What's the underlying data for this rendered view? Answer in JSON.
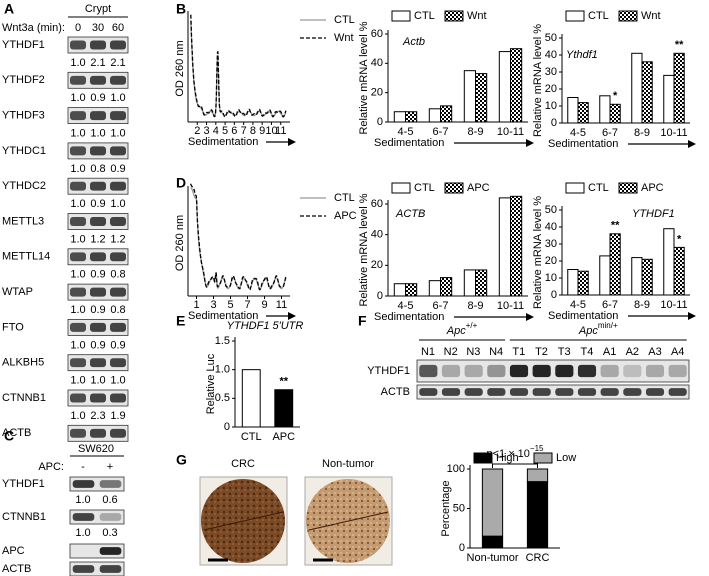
{
  "panel_labels": [
    "A",
    "B",
    "C",
    "D",
    "E",
    "F",
    "G"
  ],
  "panel_a": {
    "group": "Crypt",
    "treatment": "Wnt3a (min):",
    "lanes": [
      "0",
      "30",
      "60"
    ],
    "rows": [
      {
        "protein": "YTHDF1",
        "quant": [
          "1.0",
          "2.1",
          "2.1"
        ]
      },
      {
        "protein": "YTHDF2",
        "quant": [
          "1.0",
          "0.9",
          "1.0"
        ]
      },
      {
        "protein": "YTHDF3",
        "quant": [
          "1.0",
          "1.0",
          "1.0"
        ]
      },
      {
        "protein": "YTHDC1",
        "quant": [
          "1.0",
          "0.8",
          "0.9"
        ]
      },
      {
        "protein": "YTHDC2",
        "quant": [
          "1.0",
          "0.9",
          "1.0"
        ]
      },
      {
        "protein": "METTL3",
        "quant": [
          "1.0",
          "1.2",
          "1.2"
        ]
      },
      {
        "protein": "METTL14",
        "quant": [
          "1.0",
          "0.9",
          "0.8"
        ]
      },
      {
        "protein": "WTAP",
        "quant": [
          "1.0",
          "0.9",
          "0.8"
        ]
      },
      {
        "protein": "FTO",
        "quant": [
          "1.0",
          "0.9",
          "0.9"
        ]
      },
      {
        "protein": "ALKBH5",
        "quant": [
          "1.0",
          "1.0",
          "1.0"
        ]
      },
      {
        "protein": "CTNNB1",
        "quant": [
          "1.0",
          "2.3",
          "1.9"
        ]
      },
      {
        "protein": "ACTB"
      }
    ]
  },
  "panel_c": {
    "cell_line": "SW620",
    "treatment": "APC:",
    "lanes": [
      "-",
      "+"
    ],
    "rows": [
      {
        "protein": "YTHDF1",
        "quant": [
          "1.0",
          "0.6"
        ]
      },
      {
        "protein": "CTNNB1",
        "quant": [
          "1.0",
          "0.3"
        ]
      },
      {
        "protein": "APC"
      },
      {
        "protein": "ACTB"
      }
    ]
  },
  "panel_f": {
    "groups": [
      {
        "text": "Apc",
        "sup": "+/+",
        "lanes": [
          "N1",
          "N2",
          "N3",
          "N4"
        ]
      },
      {
        "text": "Apc",
        "sup": "min/+",
        "lanes": [
          "T1",
          "T2",
          "T3",
          "T4",
          "A1",
          "A2",
          "A3",
          "A4"
        ]
      }
    ],
    "rows": [
      "YTHDF1",
      "ACTB"
    ]
  },
  "panel_g": {
    "images": [
      "CRC",
      "Non-tumor"
    ]
  },
  "chart_data": [
    {
      "type": "line",
      "ylabel": "OD 260 nm",
      "xlabel": "Sedimentation",
      "xlim": [
        1,
        12
      ],
      "xticks": [
        2,
        3,
        4,
        5,
        6,
        7,
        8,
        9,
        10,
        11
      ],
      "series": [
        {
          "name": "CTL",
          "color": "#999999"
        },
        {
          "name": "Wnt",
          "color": "#000000",
          "dash": true
        }
      ]
    },
    {
      "type": "bar",
      "title": "Actb",
      "ylabel": "Relative mRNA level %",
      "xlabel": "Sedimentation",
      "categories": [
        "4-5",
        "6-7",
        "8-9",
        "10-11"
      ],
      "ylim": [
        0,
        60
      ],
      "yticks": [
        0,
        20,
        40,
        60
      ],
      "series": [
        {
          "name": "CTL",
          "color": "#ffffff",
          "values": [
            7,
            9,
            35,
            48
          ]
        },
        {
          "name": "Wnt",
          "color": "#000000",
          "pattern": "checkered",
          "values": [
            7,
            11,
            33,
            50
          ]
        }
      ]
    },
    {
      "type": "bar",
      "title": "Ythdf1",
      "ylabel": "Relative mRNA level %",
      "xlabel": "Sedimentation",
      "categories": [
        "4-5",
        "6-7",
        "8-9",
        "10-11"
      ],
      "ylim": [
        0,
        50
      ],
      "yticks": [
        0,
        10,
        20,
        30,
        40,
        50
      ],
      "series": [
        {
          "name": "CTL",
          "color": "#ffffff",
          "values": [
            15,
            16,
            41,
            28
          ]
        },
        {
          "name": "Wnt",
          "color": "#000000",
          "pattern": "checkered",
          "values": [
            12,
            11,
            36,
            41
          ],
          "significance": [
            null,
            "*",
            null,
            "**"
          ]
        }
      ]
    },
    {
      "type": "line",
      "ylabel": "OD 260 nm",
      "xlabel": "Sedimentation",
      "xlim": [
        0,
        12
      ],
      "xticks": [
        1,
        3,
        5,
        7,
        9,
        11
      ],
      "series": [
        {
          "name": "CTL",
          "color": "#999999"
        },
        {
          "name": "APC",
          "color": "#000000",
          "dash": true
        }
      ]
    },
    {
      "type": "bar",
      "title": "ACTB",
      "ylabel": "Relative mRNA level %",
      "xlabel": "Sedimentation",
      "categories": [
        "4-5",
        "6-7",
        "8-9",
        "10-11"
      ],
      "ylim": [
        0,
        60
      ],
      "yticks": [
        0,
        20,
        40,
        60
      ],
      "series": [
        {
          "name": "CTL",
          "color": "#ffffff",
          "values": [
            8,
            10,
            17,
            64
          ]
        },
        {
          "name": "APC",
          "color": "#000000",
          "pattern": "checkered",
          "values": [
            8,
            12,
            17,
            65
          ]
        }
      ]
    },
    {
      "type": "bar",
      "title": "YTHDF1",
      "ylabel": "Relative mRNA level %",
      "xlabel": "Sedimentation",
      "categories": [
        "4-5",
        "6-7",
        "8-9",
        "10-11"
      ],
      "ylim": [
        0,
        50
      ],
      "yticks": [
        0,
        10,
        20,
        30,
        40,
        50
      ],
      "series": [
        {
          "name": "CTL",
          "color": "#ffffff",
          "values": [
            15,
            23,
            22,
            39
          ]
        },
        {
          "name": "APC",
          "color": "#000000",
          "pattern": "checkered",
          "values": [
            14,
            36,
            21,
            28
          ],
          "significance": [
            null,
            "**",
            null,
            "*"
          ]
        }
      ]
    },
    {
      "type": "bar",
      "title": "YTHDF1 5'UTR",
      "ylabel": "Relative  Luc",
      "categories": [
        "CTL",
        "APC"
      ],
      "ylim": [
        0,
        1.5
      ],
      "yticks": [
        0,
        0.5,
        {
          "value": 1,
          "label": "1.0"
        },
        1.5
      ],
      "values": [
        1.0,
        0.65
      ],
      "colors": [
        "#ffffff",
        "#000000"
      ],
      "significance": [
        null,
        "**"
      ]
    },
    {
      "type": "bar",
      "stacked": true,
      "ylabel": "Percentage",
      "categories": [
        "Non-tumor",
        "CRC"
      ],
      "ylim": [
        0,
        100
      ],
      "yticks": [
        0,
        50,
        100
      ],
      "series": [
        {
          "name": "High",
          "color": "#000000",
          "values": [
            15,
            84
          ]
        },
        {
          "name": "Low",
          "color": "#aaaaaa",
          "values": [
            85,
            16
          ]
        }
      ],
      "annotation": {
        "text": "p<1 × 10",
        "sup": "−15"
      }
    }
  ]
}
